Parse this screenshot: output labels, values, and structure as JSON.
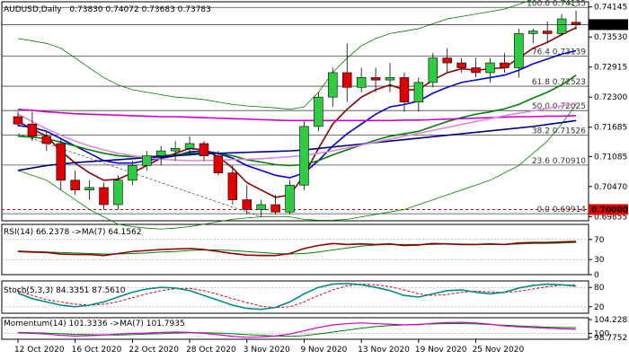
{
  "chart_data": {
    "type": "candlestick",
    "main": {
      "title": "AUDUSD,Daily",
      "ohlc_text": "0.73830 0.74072 0.73683 0.73783",
      "y_ticks": [
        "0.74145",
        "0.73530",
        "0.72915",
        "0.72300",
        "0.71685",
        "0.71085",
        "0.70470",
        "0.69855"
      ],
      "ylim": [
        0.6977,
        0.7425
      ],
      "current_price": "0.73783",
      "level_marker": "0.70000",
      "candles": [
        [
          0.719,
          0.72,
          0.717,
          0.7175
        ],
        [
          0.7175,
          0.72,
          0.714,
          0.715
        ],
        [
          0.715,
          0.716,
          0.712,
          0.7135
        ],
        [
          0.7135,
          0.7145,
          0.704,
          0.706
        ],
        [
          0.706,
          0.708,
          0.703,
          0.704
        ],
        [
          0.704,
          0.706,
          0.702,
          0.7045
        ],
        [
          0.7045,
          0.7055,
          0.7,
          0.701
        ],
        [
          0.701,
          0.707,
          0.7,
          0.706
        ],
        [
          0.706,
          0.71,
          0.705,
          0.709
        ],
        [
          0.709,
          0.712,
          0.708,
          0.711
        ],
        [
          0.711,
          0.713,
          0.709,
          0.712
        ],
        [
          0.712,
          0.714,
          0.71,
          0.7125
        ],
        [
          0.7125,
          0.715,
          0.711,
          0.7135
        ],
        [
          0.7135,
          0.714,
          0.71,
          0.711
        ],
        [
          0.711,
          0.712,
          0.707,
          0.7075
        ],
        [
          0.7075,
          0.709,
          0.701,
          0.702
        ],
        [
          0.702,
          0.705,
          0.699,
          0.7
        ],
        [
          0.7,
          0.702,
          0.6985,
          0.701
        ],
        [
          0.701,
          0.703,
          0.699,
          0.6995
        ],
        [
          0.6995,
          0.706,
          0.699,
          0.705
        ],
        [
          0.705,
          0.718,
          0.704,
          0.717
        ],
        [
          0.717,
          0.724,
          0.716,
          0.723
        ],
        [
          0.723,
          0.729,
          0.721,
          0.728
        ],
        [
          0.728,
          0.734,
          0.722,
          0.725
        ],
        [
          0.725,
          0.729,
          0.724,
          0.727
        ],
        [
          0.727,
          0.729,
          0.724,
          0.7265
        ],
        [
          0.7265,
          0.73,
          0.724,
          0.727
        ],
        [
          0.727,
          0.728,
          0.72,
          0.722
        ],
        [
          0.722,
          0.727,
          0.72,
          0.726
        ],
        [
          0.726,
          0.732,
          0.725,
          0.731
        ],
        [
          0.731,
          0.733,
          0.728,
          0.73
        ],
        [
          0.73,
          0.731,
          0.728,
          0.729
        ],
        [
          0.729,
          0.731,
          0.727,
          0.728
        ],
        [
          0.728,
          0.731,
          0.726,
          0.73
        ],
        [
          0.73,
          0.732,
          0.728,
          0.729
        ],
        [
          0.729,
          0.737,
          0.727,
          0.736
        ],
        [
          0.736,
          0.737,
          0.734,
          0.7365
        ],
        [
          0.7365,
          0.7385,
          0.734,
          0.736
        ],
        [
          0.736,
          0.74,
          0.7355,
          0.739
        ],
        [
          0.7383,
          0.7407,
          0.7368,
          0.7378
        ]
      ],
      "fib_levels": [
        {
          "label": "100.0 0.74135",
          "value": 0.74135
        },
        {
          "label": "76.4 0.73139",
          "value": 0.73139
        },
        {
          "label": "61.8 0.72523",
          "value": 0.72523
        },
        {
          "label": "50.0 0.72025",
          "value": 0.72025
        },
        {
          "label": "38.2 0.71526",
          "value": 0.71526
        },
        {
          "label": "23.6 0.70910",
          "value": 0.7091
        },
        {
          "label": "0.0 0.69914",
          "value": 0.69914
        }
      ],
      "ma_lines": [
        {
          "color": "#8b0000",
          "values": [
            0.718,
            0.7165,
            0.715,
            0.712,
            0.7095,
            0.7075,
            0.706,
            0.7062,
            0.7075,
            0.709,
            0.7105,
            0.7115,
            0.7125,
            0.7122,
            0.7108,
            0.7085,
            0.7055,
            0.704,
            0.7025,
            0.703,
            0.707,
            0.7125,
            0.7175,
            0.7205,
            0.723,
            0.7245,
            0.7255,
            0.7245,
            0.7245,
            0.7265,
            0.728,
            0.7288,
            0.7285,
            0.7288,
            0.729,
            0.731,
            0.733,
            0.7342,
            0.7358,
            0.7372
          ]
        },
        {
          "color": "#0000cd",
          "values": [
            0.7172,
            0.7168,
            0.716,
            0.7145,
            0.713,
            0.7115,
            0.71,
            0.7095,
            0.7095,
            0.71,
            0.7105,
            0.711,
            0.7118,
            0.712,
            0.7115,
            0.7105,
            0.709,
            0.708,
            0.707,
            0.7065,
            0.7075,
            0.71,
            0.713,
            0.7155,
            0.7175,
            0.7195,
            0.721,
            0.7215,
            0.7222,
            0.7238,
            0.725,
            0.726,
            0.7265,
            0.727,
            0.7275,
            0.7285,
            0.7298,
            0.7308,
            0.7318,
            0.7325
          ]
        },
        {
          "color": "#008000",
          "values": [
            0.715,
            0.7148,
            0.7145,
            0.7138,
            0.713,
            0.7122,
            0.7115,
            0.711,
            0.7108,
            0.7108,
            0.711,
            0.7112,
            0.7115,
            0.7116,
            0.7115,
            0.711,
            0.7102,
            0.7097,
            0.7092,
            0.709,
            0.7092,
            0.71,
            0.7112,
            0.7122,
            0.7132,
            0.7142,
            0.715,
            0.7155,
            0.716,
            0.717,
            0.718,
            0.7188,
            0.7195,
            0.72,
            0.7206,
            0.7215,
            0.7228,
            0.724,
            0.7255,
            0.7275
          ]
        },
        {
          "color": "#000080",
          "values": [
            0.708,
            0.7085,
            0.709,
            0.7093,
            0.7096,
            0.7098,
            0.71,
            0.7102,
            0.7104,
            0.7106,
            0.7108,
            0.711,
            0.7112,
            0.7114,
            0.7115,
            0.7116,
            0.7117,
            0.7118,
            0.7119,
            0.712,
            0.7122,
            0.7125,
            0.7128,
            0.7131,
            0.7134,
            0.7137,
            0.714,
            0.7143,
            0.7146,
            0.7149,
            0.7152,
            0.7155,
            0.7158,
            0.7161,
            0.7164,
            0.7167,
            0.717,
            0.7174,
            0.7178,
            0.7182
          ]
        },
        {
          "color": "#cc00cc",
          "values": [
            0.7205,
            0.7203,
            0.72,
            0.7198,
            0.7196,
            0.7195,
            0.7194,
            0.7193,
            0.7192,
            0.7191,
            0.719,
            0.719,
            0.7189,
            0.7188,
            0.7187,
            0.7186,
            0.7185,
            0.7184,
            0.7183,
            0.7182,
            0.7182,
            0.7182,
            0.7182,
            0.7182,
            0.7182,
            0.7182,
            0.7182,
            0.7183,
            0.7183,
            0.7184,
            0.7185,
            0.7186,
            0.7187,
            0.7188,
            0.7189,
            0.719,
            0.719,
            0.7191,
            0.7191,
            0.7192
          ]
        },
        {
          "color": "#dd88dd",
          "values": [
            0.7195,
            0.718,
            0.7165,
            0.7152,
            0.714,
            0.713,
            0.7122,
            0.7115,
            0.711,
            0.7106,
            0.7103,
            0.7101,
            0.71,
            0.71,
            0.7101,
            0.7102,
            0.7103,
            0.7104,
            0.7106,
            0.7108,
            0.7111,
            0.7115,
            0.712,
            0.7126,
            0.7132,
            0.7138,
            0.7144,
            0.715,
            0.7156,
            0.7162,
            0.7168,
            0.7174,
            0.718,
            0.7186,
            0.7192,
            0.7197,
            0.7202,
            0.7207,
            0.7212,
            0.7217
          ]
        }
      ],
      "bollinger": {
        "color": "#008000",
        "upper": [
          0.735,
          0.7345,
          0.734,
          0.733,
          0.731,
          0.729,
          0.727,
          0.7255,
          0.7245,
          0.724,
          0.7235,
          0.723,
          0.7228,
          0.7225,
          0.722,
          0.7215,
          0.7212,
          0.721,
          0.7208,
          0.7205,
          0.721,
          0.724,
          0.728,
          0.731,
          0.7335,
          0.735,
          0.736,
          0.7365,
          0.737,
          0.738,
          0.739,
          0.7395,
          0.74,
          0.7405,
          0.741,
          0.742,
          0.743,
          0.7436,
          0.743,
          0.7415
        ],
        "lower": [
          0.708,
          0.707,
          0.706,
          0.704,
          0.702,
          0.7,
          0.6985,
          0.697,
          0.6965,
          0.6962,
          0.696,
          0.6962,
          0.6965,
          0.697,
          0.6975,
          0.698,
          0.6983,
          0.6985,
          0.6986,
          0.6985,
          0.698,
          0.6978,
          0.6978,
          0.698,
          0.6985,
          0.699,
          0.6995,
          0.7,
          0.701,
          0.702,
          0.703,
          0.704,
          0.705,
          0.706,
          0.7075,
          0.709,
          0.7115,
          0.714,
          0.7175,
          0.7215
        ]
      },
      "trend_line": {
        "from": [
          0,
          0.7155
        ],
        "to": [
          17,
          0.6985
        ]
      }
    },
    "rsi": {
      "title": "RSI(14) 66.2378 ->MA(7) 64.1562",
      "ticks": [
        "70",
        "30",
        "0"
      ],
      "values": [
        46,
        45,
        44,
        41,
        40,
        40,
        38,
        42,
        46,
        48,
        50,
        51,
        52,
        50,
        46,
        42,
        39,
        38,
        38,
        42,
        52,
        58,
        62,
        60,
        61,
        60,
        61,
        58,
        59,
        62,
        61,
        60,
        60,
        61,
        60,
        63,
        64,
        64,
        65,
        66
      ],
      "ma_values": [
        47,
        46,
        45,
        44,
        43,
        42,
        41,
        41,
        42,
        43,
        45,
        46,
        48,
        49,
        49,
        48,
        46,
        44,
        42,
        41,
        42,
        45,
        49,
        53,
        57,
        59,
        60,
        60,
        60,
        60,
        61,
        61,
        60,
        60,
        60,
        61,
        62,
        62,
        63,
        64
      ]
    },
    "stoch": {
      "title": "Stoch(5,3,3) 84.3351 87.5610",
      "ticks": [
        "80",
        "20"
      ],
      "k": [
        62,
        45,
        35,
        25,
        20,
        25,
        35,
        50,
        65,
        75,
        80,
        78,
        70,
        55,
        40,
        25,
        15,
        12,
        18,
        35,
        60,
        80,
        90,
        92,
        88,
        80,
        70,
        55,
        50,
        60,
        70,
        72,
        65,
        60,
        65,
        78,
        86,
        90,
        88,
        84
      ],
      "d": [
        70,
        55,
        42,
        35,
        28,
        25,
        28,
        36,
        48,
        60,
        70,
        76,
        77,
        70,
        58,
        45,
        33,
        22,
        17,
        20,
        35,
        55,
        72,
        85,
        90,
        88,
        82,
        72,
        60,
        55,
        58,
        65,
        68,
        66,
        64,
        68,
        75,
        82,
        87,
        88
      ]
    },
    "momentum": {
      "title": "Momentum(14) 101.3336 ->MA(7) 101.7935",
      "ticks": [
        "104.2281",
        "100",
        "98.7752"
      ],
      "values": [
        100.2,
        100.0,
        99.8,
        99.4,
        99.2,
        99.3,
        99.5,
        99.8,
        100.0,
        100.1,
        100.3,
        100.4,
        100.3,
        100.0,
        99.6,
        99.1,
        98.8,
        98.9,
        99.2,
        99.8,
        100.8,
        101.8,
        102.6,
        103.0,
        103.2,
        103.0,
        102.8,
        102.6,
        102.7,
        103.1,
        103.3,
        103.4,
        103.2,
        102.8,
        102.3,
        102.0,
        101.8,
        101.6,
        101.4,
        101.3
      ],
      "ma_values": [
        100.3,
        100.2,
        100.1,
        99.9,
        99.7,
        99.6,
        99.5,
        99.5,
        99.6,
        99.8,
        99.9,
        100.1,
        100.2,
        100.2,
        100.1,
        99.9,
        99.6,
        99.4,
        99.2,
        99.1,
        99.3,
        99.8,
        100.4,
        101.0,
        101.6,
        102.1,
        102.4,
        102.6,
        102.8,
        102.9,
        103.0,
        103.0,
        102.9,
        102.7,
        102.5,
        102.3,
        102.1,
        101.9,
        101.8,
        101.8
      ]
    },
    "x_labels": [
      {
        "label": "12 Oct 2020",
        "index": 0
      },
      {
        "label": "16 Oct 2020",
        "index": 4
      },
      {
        "label": "22 Oct 2020",
        "index": 8
      },
      {
        "label": "28 Oct 2020",
        "index": 12
      },
      {
        "label": "3 Nov 2020",
        "index": 16
      },
      {
        "label": "9 Nov 2020",
        "index": 20
      },
      {
        "label": "13 Nov 2020",
        "index": 24
      },
      {
        "label": "19 Nov 2020",
        "index": 28
      },
      {
        "label": "25 Nov 2020",
        "index": 32
      }
    ]
  }
}
